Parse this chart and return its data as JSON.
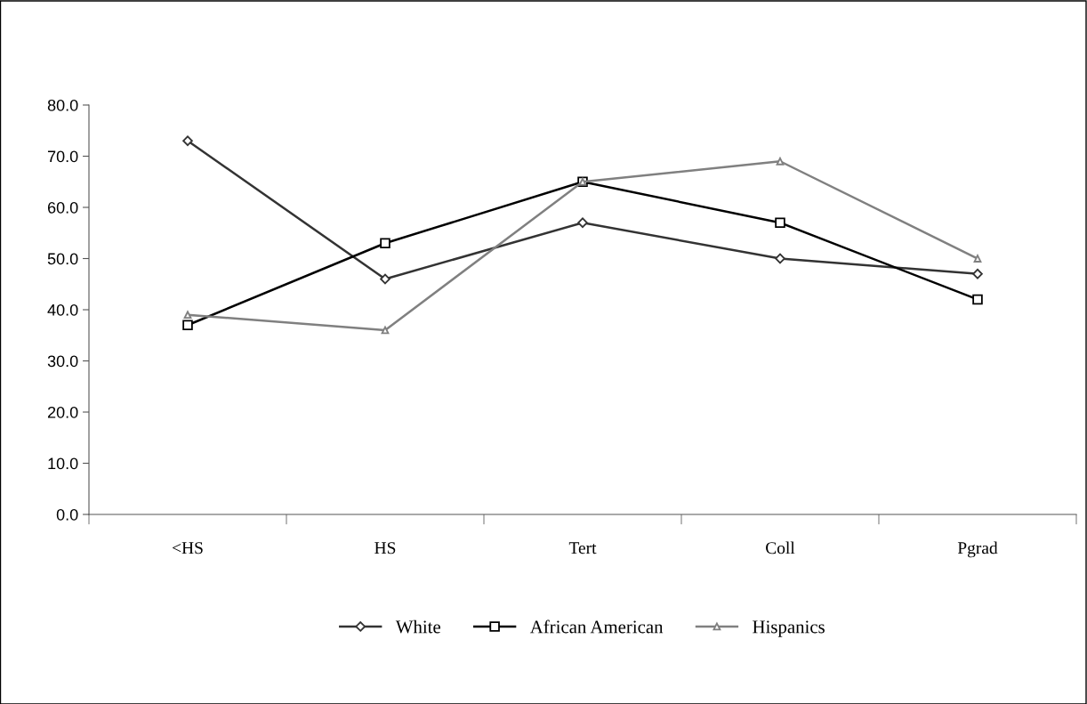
{
  "chart_data": {
    "type": "line",
    "categories": [
      "<HS",
      "HS",
      "Tert",
      "Coll",
      "Pgrad"
    ],
    "series": [
      {
        "name": "White",
        "color": "#333333",
        "marker": "diamond",
        "values": [
          73,
          46,
          57,
          50,
          47
        ]
      },
      {
        "name": "African American",
        "color": "#000000",
        "marker": "square",
        "values": [
          37,
          53,
          65,
          57,
          42
        ]
      },
      {
        "name": "Hispanics",
        "color": "#808080",
        "marker": "triangle",
        "values": [
          39,
          36,
          65,
          69,
          50
        ]
      }
    ],
    "ylim": [
      0,
      80
    ],
    "yticks": [
      {
        "value": 0,
        "label": "0.0"
      },
      {
        "value": 10,
        "label": "10.0"
      },
      {
        "value": 20,
        "label": "20.0"
      },
      {
        "value": 30,
        "label": "30.0"
      },
      {
        "value": 40,
        "label": "40.0"
      },
      {
        "value": 50,
        "label": "50.0"
      },
      {
        "value": 60,
        "label": "60.0"
      },
      {
        "value": 70,
        "label": "70.0"
      },
      {
        "value": 80,
        "label": "80.0"
      }
    ],
    "grid": false,
    "legend": "bottom",
    "line_style": "solid"
  }
}
